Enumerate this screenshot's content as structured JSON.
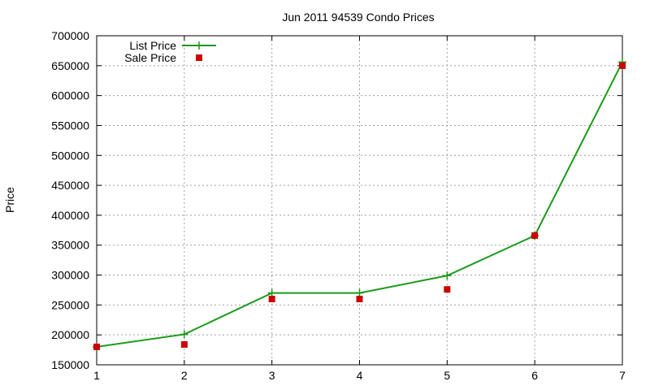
{
  "chart_data": {
    "type": "line",
    "title": "Jun 2011 94539 Condo Prices",
    "xlabel": "",
    "ylabel": "Price",
    "x": [
      1,
      2,
      3,
      4,
      5,
      6,
      7
    ],
    "xlim": [
      1,
      7
    ],
    "ylim": [
      150000,
      700000
    ],
    "x_ticks": [
      "1",
      "2",
      "3",
      "4",
      "5",
      "6",
      "7"
    ],
    "y_ticks": [
      "150000",
      "200000",
      "250000",
      "300000",
      "350000",
      "400000",
      "450000",
      "500000",
      "550000",
      "600000",
      "650000",
      "700000"
    ],
    "grid": true,
    "legend_position": "top-left",
    "series": [
      {
        "name": "List Price",
        "style": "line-with-plus-markers",
        "color": "#1a9a1a",
        "values": [
          180000,
          201000,
          270000,
          270000,
          299000,
          366000,
          656000
        ]
      },
      {
        "name": "Sale Price",
        "style": "square-points",
        "color": "#cc0000",
        "values": [
          180000,
          184000,
          260000,
          260000,
          276000,
          366000,
          650000
        ]
      }
    ]
  }
}
